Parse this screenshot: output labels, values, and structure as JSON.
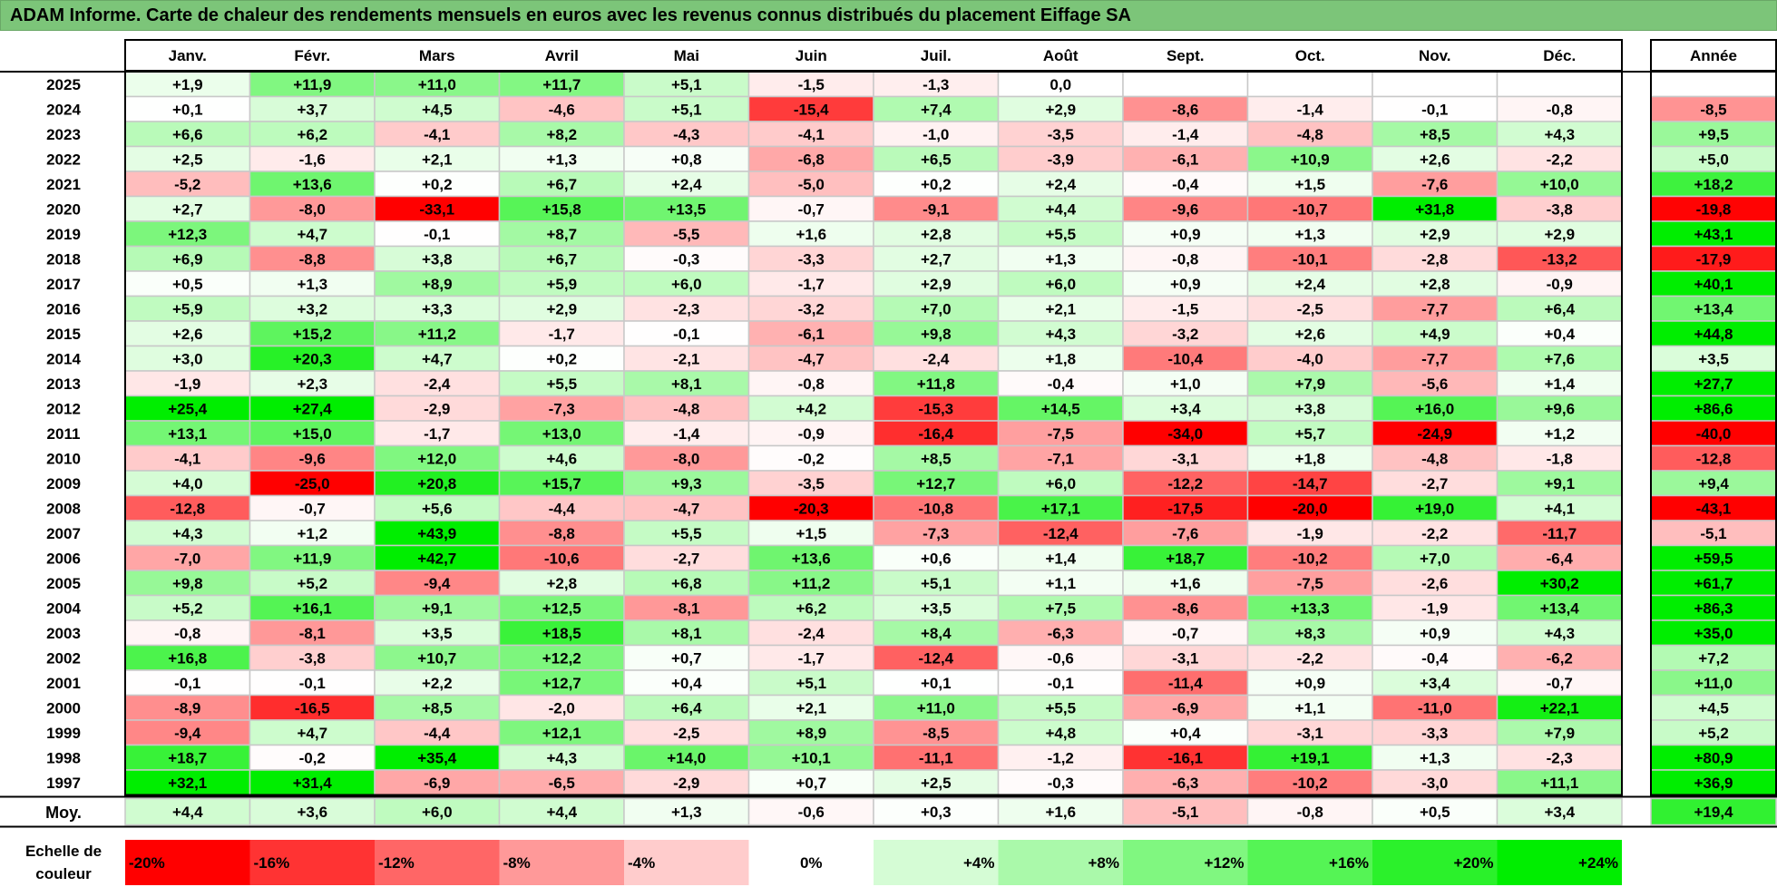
{
  "title": "ADAM Informe. Carte de chaleur des rendements mensuels en euros avec les revenus connus distribués du placement Eiffage SA",
  "chart_data": {
    "type": "heatmap",
    "title": "ADAM Informe. Carte de chaleur des rendements mensuels en euros avec les revenus connus distribués du placement Eiffage SA",
    "months": [
      "Janv.",
      "Févr.",
      "Mars",
      "Avril",
      "Mai",
      "Juin",
      "Juil.",
      "Août",
      "Sept.",
      "Oct.",
      "Nov.",
      "Déc."
    ],
    "annual_header": "Année",
    "rows": [
      {
        "year": "2025",
        "values": [
          "+1,9",
          "+11,9",
          "+11,0",
          "+11,7",
          "+5,1",
          "-1,5",
          "-1,3",
          "0,0",
          "",
          "",
          "",
          ""
        ],
        "annual": ""
      },
      {
        "year": "2024",
        "values": [
          "+0,1",
          "+3,7",
          "+4,5",
          "-4,6",
          "+5,1",
          "-15,4",
          "+7,4",
          "+2,9",
          "-8,6",
          "-1,4",
          "-0,1",
          "-0,8"
        ],
        "annual": "-8,5"
      },
      {
        "year": "2023",
        "values": [
          "+6,6",
          "+6,2",
          "-4,1",
          "+8,2",
          "-4,3",
          "-4,1",
          "-1,0",
          "-3,5",
          "-1,4",
          "-4,8",
          "+8,5",
          "+4,3"
        ],
        "annual": "+9,5"
      },
      {
        "year": "2022",
        "values": [
          "+2,5",
          "-1,6",
          "+2,1",
          "+1,3",
          "+0,8",
          "-6,8",
          "+6,5",
          "-3,9",
          "-6,1",
          "+10,9",
          "+2,6",
          "-2,2"
        ],
        "annual": "+5,0"
      },
      {
        "year": "2021",
        "values": [
          "-5,2",
          "+13,6",
          "+0,2",
          "+6,7",
          "+2,4",
          "-5,0",
          "+0,2",
          "+2,4",
          "-0,4",
          "+1,5",
          "-7,6",
          "+10,0"
        ],
        "annual": "+18,2"
      },
      {
        "year": "2020",
        "values": [
          "+2,7",
          "-8,0",
          "-33,1",
          "+15,8",
          "+13,5",
          "-0,7",
          "-9,1",
          "+4,4",
          "-9,6",
          "-10,7",
          "+31,8",
          "-3,8"
        ],
        "annual": "-19,8"
      },
      {
        "year": "2019",
        "values": [
          "+12,3",
          "+4,7",
          "-0,1",
          "+8,7",
          "-5,5",
          "+1,6",
          "+2,8",
          "+5,5",
          "+0,9",
          "+1,3",
          "+2,9",
          "+2,9"
        ],
        "annual": "+43,1"
      },
      {
        "year": "2018",
        "values": [
          "+6,9",
          "-8,8",
          "+3,8",
          "+6,7",
          "-0,3",
          "-3,3",
          "+2,7",
          "+1,3",
          "-0,8",
          "-10,1",
          "-2,8",
          "-13,2"
        ],
        "annual": "-17,9"
      },
      {
        "year": "2017",
        "values": [
          "+0,5",
          "+1,3",
          "+8,9",
          "+5,9",
          "+6,0",
          "-1,7",
          "+2,9",
          "+6,0",
          "+0,9",
          "+2,4",
          "+2,8",
          "-0,9"
        ],
        "annual": "+40,1"
      },
      {
        "year": "2016",
        "values": [
          "+5,9",
          "+3,2",
          "+3,3",
          "+2,9",
          "-2,3",
          "-3,2",
          "+7,0",
          "+2,1",
          "-1,5",
          "-2,5",
          "-7,7",
          "+6,4"
        ],
        "annual": "+13,4"
      },
      {
        "year": "2015",
        "values": [
          "+2,6",
          "+15,2",
          "+11,2",
          "-1,7",
          "-0,1",
          "-6,1",
          "+9,8",
          "+4,3",
          "-3,2",
          "+2,6",
          "+4,9",
          "+0,4"
        ],
        "annual": "+44,8"
      },
      {
        "year": "2014",
        "values": [
          "+3,0",
          "+20,3",
          "+4,7",
          "+0,2",
          "-2,1",
          "-4,7",
          "-2,4",
          "+1,8",
          "-10,4",
          "-4,0",
          "-7,7",
          "+7,6"
        ],
        "annual": "+3,5"
      },
      {
        "year": "2013",
        "values": [
          "-1,9",
          "+2,3",
          "-2,4",
          "+5,5",
          "+8,1",
          "-0,8",
          "+11,8",
          "-0,4",
          "+1,0",
          "+7,9",
          "-5,6",
          "+1,4"
        ],
        "annual": "+27,7"
      },
      {
        "year": "2012",
        "values": [
          "+25,4",
          "+27,4",
          "-2,9",
          "-7,3",
          "-4,8",
          "+4,2",
          "-15,3",
          "+14,5",
          "+3,4",
          "+3,8",
          "+16,0",
          "+9,6"
        ],
        "annual": "+86,6"
      },
      {
        "year": "2011",
        "values": [
          "+13,1",
          "+15,0",
          "-1,7",
          "+13,0",
          "-1,4",
          "-0,9",
          "-16,4",
          "-7,5",
          "-34,0",
          "+5,7",
          "-24,9",
          "+1,2"
        ],
        "annual": "-40,0"
      },
      {
        "year": "2010",
        "values": [
          "-4,1",
          "-9,6",
          "+12,0",
          "+4,6",
          "-8,0",
          "-0,2",
          "+8,5",
          "-7,1",
          "-3,1",
          "+1,8",
          "-4,8",
          "-1,8"
        ],
        "annual": "-12,8"
      },
      {
        "year": "2009",
        "values": [
          "+4,0",
          "-25,0",
          "+20,8",
          "+15,7",
          "+9,3",
          "-3,5",
          "+12,7",
          "+6,0",
          "-12,2",
          "-14,7",
          "-2,7",
          "+9,1"
        ],
        "annual": "+9,4"
      },
      {
        "year": "2008",
        "values": [
          "-12,8",
          "-0,7",
          "+5,6",
          "-4,4",
          "-4,7",
          "-20,3",
          "-10,8",
          "+17,1",
          "-17,5",
          "-20,0",
          "+19,0",
          "+4,1"
        ],
        "annual": "-43,1"
      },
      {
        "year": "2007",
        "values": [
          "+4,3",
          "+1,2",
          "+43,9",
          "-8,8",
          "+5,5",
          "+1,5",
          "-7,3",
          "-12,4",
          "-7,6",
          "-1,9",
          "-2,2",
          "-11,7"
        ],
        "annual": "-5,1"
      },
      {
        "year": "2006",
        "values": [
          "-7,0",
          "+11,9",
          "+42,7",
          "-10,6",
          "-2,7",
          "+13,6",
          "+0,6",
          "+1,4",
          "+18,7",
          "-10,2",
          "+7,0",
          "-6,4"
        ],
        "annual": "+59,5"
      },
      {
        "year": "2005",
        "values": [
          "+9,8",
          "+5,2",
          "-9,4",
          "+2,8",
          "+6,8",
          "+11,2",
          "+5,1",
          "+1,1",
          "+1,6",
          "-7,5",
          "-2,6",
          "+30,2"
        ],
        "annual": "+61,7"
      },
      {
        "year": "2004",
        "values": [
          "+5,2",
          "+16,1",
          "+9,1",
          "+12,5",
          "-8,1",
          "+6,2",
          "+3,5",
          "+7,5",
          "-8,6",
          "+13,3",
          "-1,9",
          "+13,4"
        ],
        "annual": "+86,3"
      },
      {
        "year": "2003",
        "values": [
          "-0,8",
          "-8,1",
          "+3,5",
          "+18,5",
          "+8,1",
          "-2,4",
          "+8,4",
          "-6,3",
          "-0,7",
          "+8,3",
          "+0,9",
          "+4,3"
        ],
        "annual": "+35,0"
      },
      {
        "year": "2002",
        "values": [
          "+16,8",
          "-3,8",
          "+10,7",
          "+12,2",
          "+0,7",
          "-1,7",
          "-12,4",
          "-0,6",
          "-3,1",
          "-2,2",
          "-0,4",
          "-6,2"
        ],
        "annual": "+7,2"
      },
      {
        "year": "2001",
        "values": [
          "-0,1",
          "-0,1",
          "+2,2",
          "+12,7",
          "+0,4",
          "+5,1",
          "+0,1",
          "-0,1",
          "-11,4",
          "+0,9",
          "+3,4",
          "-0,7"
        ],
        "annual": "+11,0"
      },
      {
        "year": "2000",
        "values": [
          "-8,9",
          "-16,5",
          "+8,5",
          "-2,0",
          "+6,4",
          "+2,1",
          "+11,0",
          "+5,5",
          "-6,9",
          "+1,1",
          "-11,0",
          "+22,1"
        ],
        "annual": "+4,5"
      },
      {
        "year": "1999",
        "values": [
          "-9,4",
          "+4,7",
          "-4,4",
          "+12,1",
          "-2,5",
          "+8,9",
          "-8,5",
          "+4,8",
          "+0,4",
          "-3,1",
          "-3,3",
          "+7,9"
        ],
        "annual": "+5,2"
      },
      {
        "year": "1998",
        "values": [
          "+18,7",
          "-0,2",
          "+35,4",
          "+4,3",
          "+14,0",
          "+10,1",
          "-11,1",
          "-1,2",
          "-16,1",
          "+19,1",
          "+1,3",
          "-2,3"
        ],
        "annual": "+80,9"
      },
      {
        "year": "1997",
        "values": [
          "+32,1",
          "+31,4",
          "-6,9",
          "-6,5",
          "-2,9",
          "+0,7",
          "+2,5",
          "-0,3",
          "-6,3",
          "-10,2",
          "-3,0",
          "+11,1"
        ],
        "annual": "+36,9"
      }
    ],
    "average": {
      "label": "Moy.",
      "values": [
        "+4,4",
        "+3,6",
        "+6,0",
        "+4,4",
        "+1,3",
        "-0,6",
        "+0,3",
        "+1,6",
        "-5,1",
        "-0,8",
        "+0,5",
        "+3,4"
      ],
      "annual": "+19,4"
    },
    "scale": {
      "label_line1": "Echelle de",
      "label_line2": "couleur",
      "steps": [
        {
          "label": "-20%",
          "value": -20,
          "align": "left"
        },
        {
          "label": "-16%",
          "value": -16,
          "align": "left"
        },
        {
          "label": "-12%",
          "value": -12,
          "align": "left"
        },
        {
          "label": "-8%",
          "value": -8,
          "align": "left"
        },
        {
          "label": "-4%",
          "value": -4,
          "align": "left"
        },
        {
          "label": "0%",
          "value": 0,
          "align": "center"
        },
        {
          "label": "+4%",
          "value": 4,
          "align": "right"
        },
        {
          "label": "+8%",
          "value": 8,
          "align": "right"
        },
        {
          "label": "+12%",
          "value": 12,
          "align": "right"
        },
        {
          "label": "+16%",
          "value": 16,
          "align": "right"
        },
        {
          "label": "+20%",
          "value": 20,
          "align": "right"
        },
        {
          "label": "+24%",
          "value": 24,
          "align": "right"
        }
      ]
    },
    "colors": {
      "negative_max": "#ff0000",
      "neutral": "#ffffff",
      "positive_max": "#00ee00",
      "border": "#c8c8c8",
      "title_bar": "#7cc579"
    },
    "color_range": {
      "negative_clip": -20,
      "positive_clip": 24
    }
  }
}
